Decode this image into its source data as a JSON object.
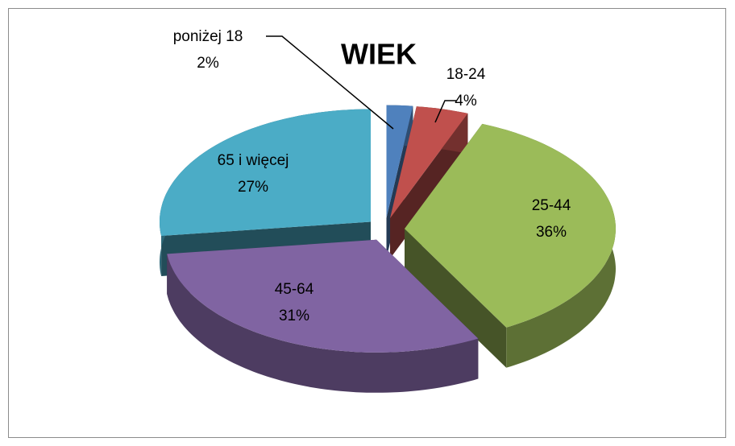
{
  "chart_data": {
    "type": "pie",
    "title": "WIEK",
    "categories": [
      "poniżej 18",
      "18-24",
      "25-44",
      "45-64",
      "65 i więcej"
    ],
    "values": [
      2,
      4,
      36,
      31,
      27
    ],
    "value_labels": [
      "2%",
      "4%",
      "36%",
      "31%",
      "27%"
    ],
    "colors": [
      "#4f81bd",
      "#c0504d",
      "#9bbb59",
      "#8064a2",
      "#4bacc6"
    ]
  }
}
